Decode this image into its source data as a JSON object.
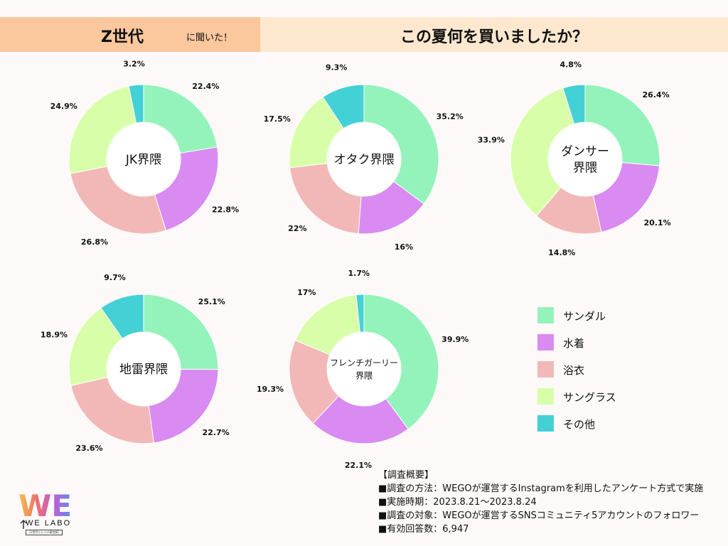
{
  "header": {
    "title": "Z世代",
    "subtitle": "に聞いた！",
    "question": "この夏何を買いましたか？"
  },
  "categories": [
    "サンダル",
    "水着",
    "浴衣",
    "サングラス",
    "その他"
  ],
  "colors": [
    "#94f3bb",
    "#d98bf1",
    "#f2b8b8",
    "#d9fea9",
    "#44d1d6"
  ],
  "chart_data": [
    {
      "type": "pie",
      "title": "JK界隈",
      "values": [
        22.4,
        22.8,
        26.8,
        24.9,
        3.2
      ],
      "labels": [
        "22.4%",
        "22.8%",
        "26.8%",
        "24.9%",
        "3.2%"
      ]
    },
    {
      "type": "pie",
      "title": "オタク界隈",
      "values": [
        35.2,
        16,
        22,
        17.5,
        9.3
      ],
      "labels": [
        "35.2%",
        "16%",
        "22%",
        "17.5%",
        "9.3%"
      ]
    },
    {
      "type": "pie",
      "title": "ダンサー界隈",
      "title_lines": [
        "ダンサー",
        "界隈"
      ],
      "values": [
        26.4,
        20.1,
        14.8,
        33.9,
        4.8
      ],
      "labels": [
        "26.4%",
        "20.1%",
        "14.8%",
        "33.9%",
        "4.8%"
      ]
    },
    {
      "type": "pie",
      "title": "地雷界隈",
      "values": [
        25.1,
        22.7,
        23.6,
        18.9,
        9.7
      ],
      "labels": [
        "25.1%",
        "22.7%",
        "23.6%",
        "18.9%",
        "9.7%"
      ]
    },
    {
      "type": "pie",
      "title": "フレンチガーリー界隈",
      "title_lines": [
        "フレンチガーリー",
        "界隈"
      ],
      "values": [
        39.9,
        22.1,
        19.3,
        17,
        1.7
      ],
      "labels": [
        "39.9%",
        "22.1%",
        "19.3%",
        "17%",
        "1.7%"
      ]
    }
  ],
  "summary": [
    "【調査概要】",
    "■調査の方法：WEGOが運営するInstagramを利用したアンケート方式で実施",
    "■実施時期：2023.8.21〜2023.8.24",
    "■調査の対象：WEGOが運営するSNSコミュニティ5アカウントのフォロワー",
    "■有効回答数：6,947"
  ],
  "logo": {
    "mark": "WE",
    "name": "WE LABO",
    "tagline": "［Z世代トレンド研究所］"
  }
}
